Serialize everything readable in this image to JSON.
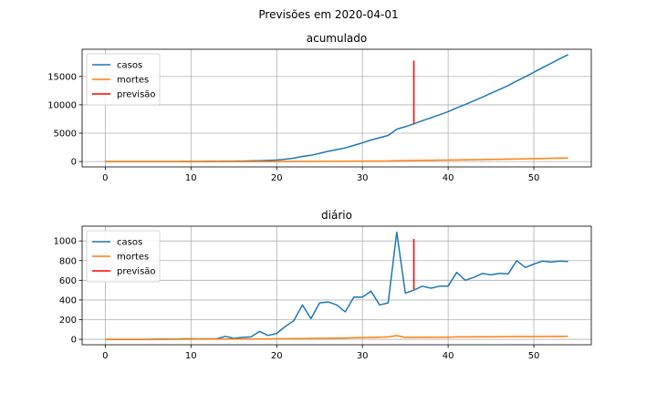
{
  "figure_title": "Previsões em 2020-04-01",
  "chart_data": [
    {
      "type": "line",
      "title": "acumulado",
      "xlabel": "",
      "ylabel": "",
      "xlim": [
        -2.7,
        56.7
      ],
      "ylim": [
        -950,
        19800
      ],
      "xticks": [
        0,
        10,
        20,
        30,
        40,
        50
      ],
      "yticks": [
        0,
        5000,
        10000,
        15000
      ],
      "grid": true,
      "legend": "top-left",
      "series": [
        {
          "name": "casos",
          "color": "#1f77b4",
          "x": [
            0,
            1,
            2,
            3,
            4,
            5,
            6,
            7,
            8,
            9,
            10,
            11,
            12,
            13,
            14,
            15,
            16,
            17,
            18,
            19,
            20,
            21,
            22,
            23,
            24,
            25,
            26,
            27,
            28,
            29,
            30,
            31,
            32,
            33,
            34,
            35,
            36,
            37,
            38,
            39,
            40,
            41,
            42,
            43,
            44,
            45,
            46,
            47,
            48,
            49,
            50,
            51,
            52,
            53,
            54
          ],
          "values": [
            0,
            0,
            0,
            0,
            0,
            0,
            1,
            3,
            5,
            10,
            15,
            20,
            25,
            30,
            45,
            60,
            80,
            110,
            150,
            200,
            250,
            400,
            600,
            900,
            1100,
            1450,
            1800,
            2100,
            2400,
            2850,
            3300,
            3800,
            4200,
            4600,
            5700,
            6150,
            6650,
            7200,
            7700,
            8250,
            8800,
            9450,
            10050,
            10700,
            11350,
            12050,
            12700,
            13400,
            14200,
            14950,
            15750,
            16550,
            17300,
            18100,
            18850
          ]
        },
        {
          "name": "mortes",
          "color": "#ff7f0e",
          "x": [
            0,
            5,
            10,
            15,
            20,
            25,
            30,
            33,
            34,
            35,
            36,
            40,
            45,
            50,
            54
          ],
          "values": [
            0,
            0,
            0,
            0,
            5,
            20,
            60,
            100,
            140,
            160,
            180,
            260,
            380,
            500,
            650
          ]
        }
      ],
      "vline": {
        "name": "previsão",
        "x": 36,
        "y_from": 6650,
        "y_to": 17800,
        "color": "#ff0000"
      }
    },
    {
      "type": "line",
      "title": "diário",
      "xlabel": "",
      "ylabel": "",
      "xlim": [
        -2.7,
        56.7
      ],
      "ylim": [
        -55,
        1150
      ],
      "xticks": [
        0,
        10,
        20,
        30,
        40,
        50
      ],
      "yticks": [
        0,
        200,
        400,
        600,
        800,
        1000
      ],
      "grid": true,
      "legend": "top-left",
      "series": [
        {
          "name": "casos",
          "color": "#1f77b4",
          "x": [
            0,
            1,
            2,
            3,
            4,
            5,
            6,
            7,
            8,
            9,
            10,
            11,
            12,
            13,
            14,
            15,
            16,
            17,
            18,
            19,
            20,
            21,
            22,
            23,
            24,
            25,
            26,
            27,
            28,
            29,
            30,
            31,
            32,
            33,
            34,
            35,
            36,
            37,
            38,
            39,
            40,
            41,
            42,
            43,
            44,
            45,
            46,
            47,
            48,
            49,
            50,
            51,
            52,
            53,
            54
          ],
          "values": [
            0,
            0,
            0,
            0,
            0,
            0,
            2,
            3,
            2,
            5,
            5,
            4,
            5,
            5,
            30,
            10,
            20,
            25,
            80,
            40,
            60,
            130,
            190,
            350,
            210,
            370,
            380,
            350,
            280,
            430,
            430,
            490,
            350,
            370,
            1090,
            470,
            500,
            540,
            520,
            540,
            540,
            680,
            600,
            630,
            670,
            655,
            670,
            665,
            800,
            730,
            765,
            795,
            785,
            795,
            790
          ]
        },
        {
          "name": "mortes",
          "color": "#ff7f0e",
          "x": [
            0,
            5,
            10,
            15,
            20,
            25,
            28,
            30,
            32,
            33,
            34,
            35,
            36,
            38,
            40,
            41,
            45,
            48,
            50,
            54
          ],
          "values": [
            0,
            0,
            2,
            3,
            5,
            10,
            14,
            18,
            22,
            25,
            38,
            20,
            20,
            22,
            22,
            25,
            26,
            28,
            28,
            30
          ]
        }
      ],
      "vline": {
        "name": "previsão",
        "x": 36,
        "y_from": 510,
        "y_to": 1020,
        "color": "#ff0000"
      }
    }
  ]
}
